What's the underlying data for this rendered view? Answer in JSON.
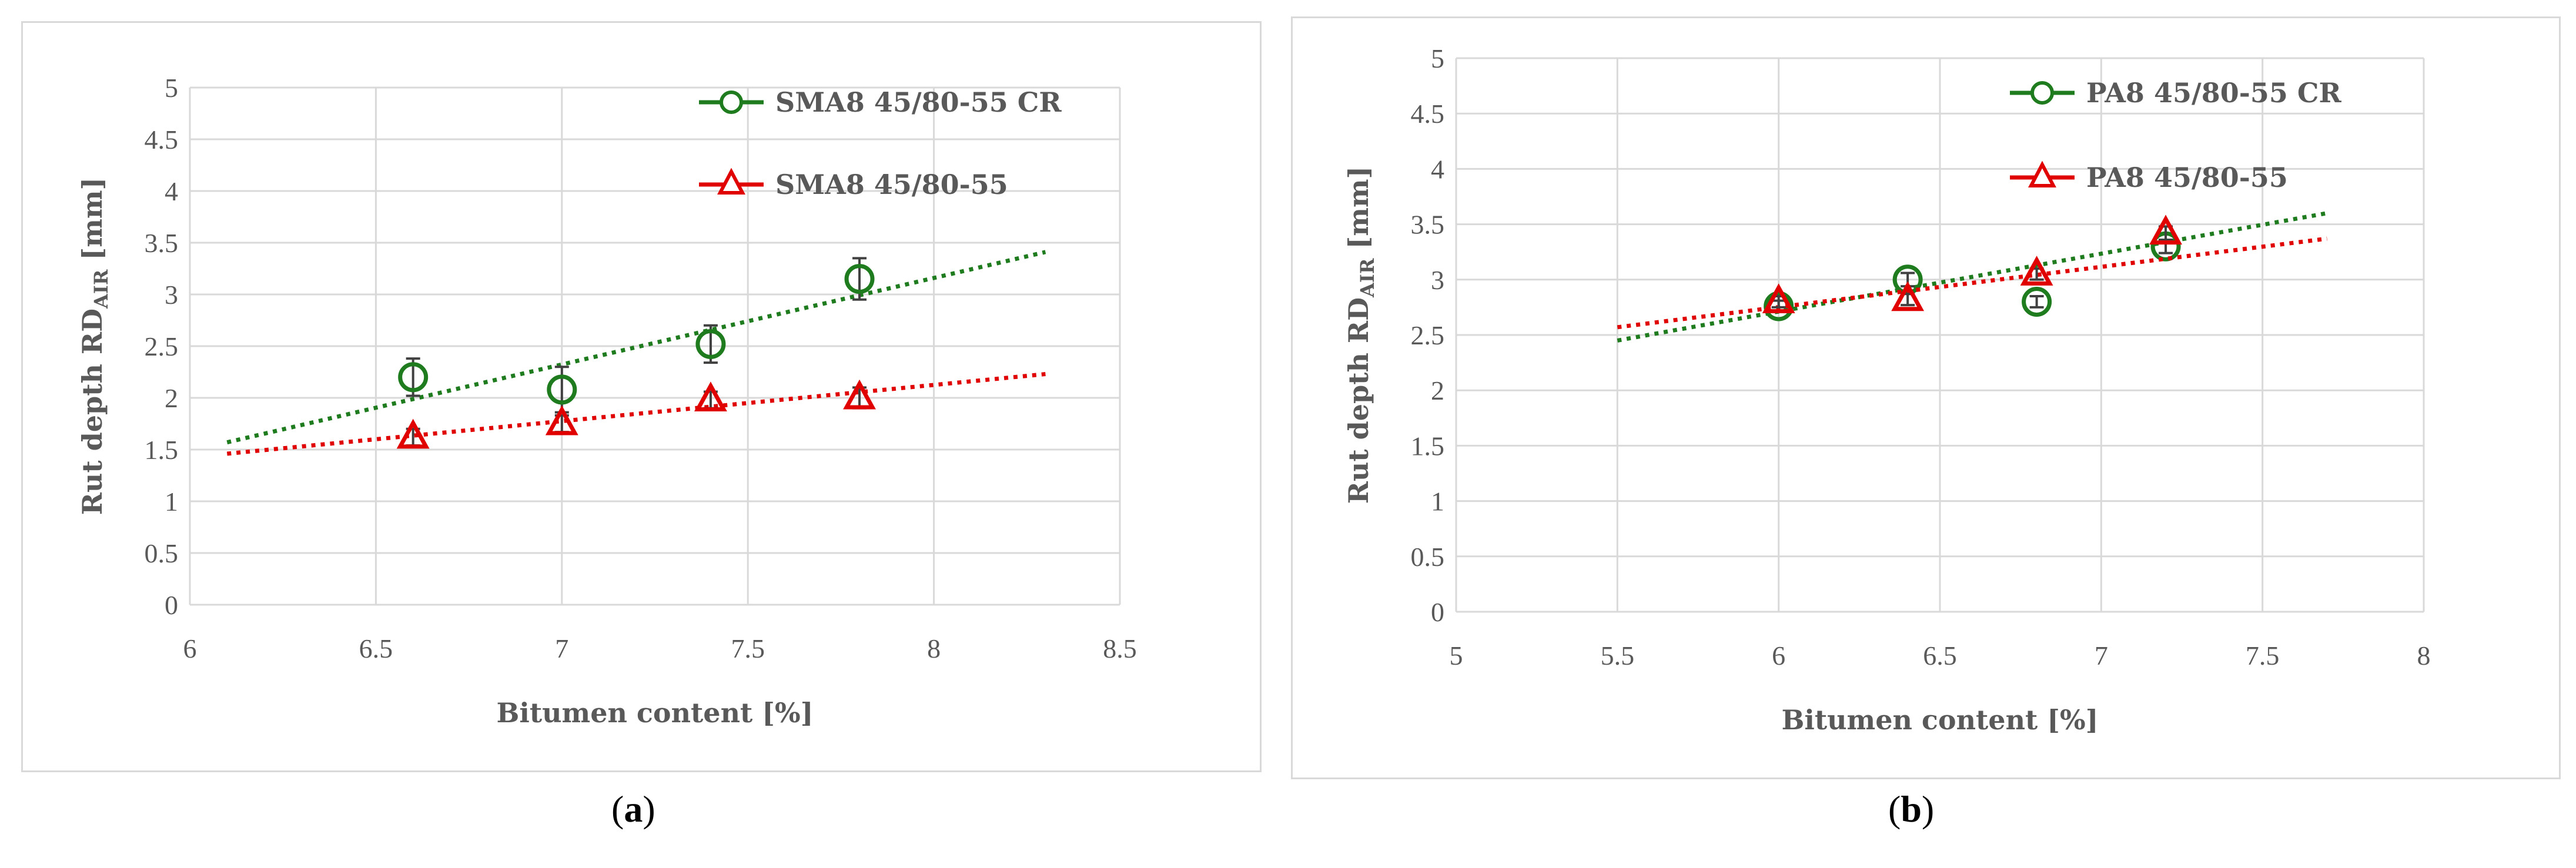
{
  "colors": {
    "cr": "#1e7b1e",
    "base": "#e00000",
    "grid": "#d9d9d9",
    "text": "#595959"
  },
  "captions": {
    "a": {
      "open": "(",
      "letter": "a",
      "close": ")"
    },
    "b": {
      "open": "(",
      "letter": "b",
      "close": ")"
    }
  },
  "chart_data": [
    {
      "id": "a",
      "type": "scatter",
      "title": "",
      "xlabel": "Bitumen content [%]",
      "ylabel": {
        "main": "Rut depth RD",
        "sub": "AIR",
        "unit": " [mm]"
      },
      "xlim": [
        6,
        8.5
      ],
      "ylim": [
        0,
        5
      ],
      "xticks": [
        "6",
        "6.5",
        "7",
        "7.5",
        "8",
        "8.5"
      ],
      "yticks": [
        "0",
        "0.5",
        "1",
        "1.5",
        "2",
        "2.5",
        "3",
        "3.5",
        "4",
        "4.5",
        "5"
      ],
      "grid": true,
      "legend": "top-right",
      "series": [
        {
          "name": "SMA8 45/80-55 CR",
          "marker": "circle",
          "color": "#1e7b1e",
          "x": [
            6.6,
            7.0,
            7.4,
            7.8
          ],
          "y": [
            2.2,
            2.08,
            2.52,
            3.15
          ],
          "error": [
            0.18,
            0.22,
            0.18,
            0.2
          ],
          "trendline": {
            "type": "linear",
            "x": [
              6.1,
              8.3
            ],
            "y": [
              1.57,
              3.41
            ]
          }
        },
        {
          "name": "SMA8 45/80-55",
          "marker": "triangle",
          "color": "#e00000",
          "x": [
            6.6,
            7.0,
            7.4,
            7.8
          ],
          "y": [
            1.62,
            1.75,
            1.98,
            2.0
          ],
          "error": [
            0.08,
            0.08,
            0.08,
            0.1
          ],
          "trendline": {
            "type": "linear",
            "x": [
              6.1,
              8.3
            ],
            "y": [
              1.46,
              2.23
            ]
          }
        }
      ]
    },
    {
      "id": "b",
      "type": "scatter",
      "title": "",
      "xlabel": "Bitumen content [%]",
      "ylabel": {
        "main": "Rut depth RD",
        "sub": "AIR",
        "unit": " [mm]"
      },
      "xlim": [
        5,
        8
      ],
      "ylim": [
        0,
        5
      ],
      "xticks": [
        "5",
        "5.5",
        "6",
        "6.5",
        "7",
        "7.5",
        "8"
      ],
      "yticks": [
        "0",
        "0.5",
        "1",
        "1.5",
        "2",
        "2.5",
        "3",
        "3.5",
        "4",
        "4.5",
        "5"
      ],
      "grid": true,
      "legend": "top-right",
      "series": [
        {
          "name": "PA8 45/80-55 CR",
          "marker": "circle",
          "color": "#1e7b1e",
          "x": [
            6.0,
            6.4,
            6.8,
            7.2
          ],
          "y": [
            2.76,
            3.0,
            2.8,
            3.3
          ],
          "error": [
            0.05,
            0.06,
            0.05,
            0.06
          ],
          "trendline": {
            "type": "linear",
            "x": [
              5.5,
              7.7
            ],
            "y": [
              2.45,
              3.6
            ]
          }
        },
        {
          "name": "PA8 45/80-55",
          "marker": "triangle",
          "color": "#e00000",
          "x": [
            6.0,
            6.4,
            6.8,
            7.2
          ],
          "y": [
            2.8,
            2.82,
            3.05,
            3.42
          ],
          "error": [
            0.05,
            0.05,
            0.05,
            0.06
          ],
          "trendline": {
            "type": "linear",
            "x": [
              5.5,
              7.7
            ],
            "y": [
              2.57,
              3.37
            ]
          }
        }
      ]
    }
  ]
}
